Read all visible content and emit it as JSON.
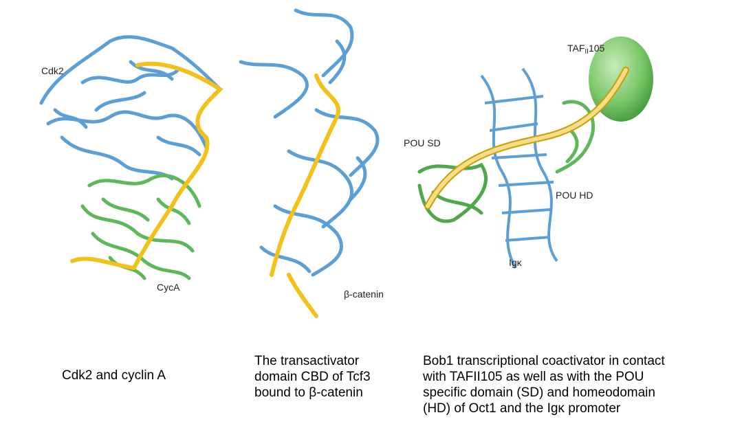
{
  "panels": [
    {
      "labels": {
        "top": "Cdk2",
        "bottom": "CycA"
      },
      "caption": [
        "Cdk2 and cyclin A"
      ]
    },
    {
      "labels": {
        "bottom": "β-catenin"
      },
      "caption": [
        "The transactivator",
        "domain CBD of Tcf3",
        "bound to β-catenin"
      ]
    },
    {
      "labels": {
        "taf_main": "TAF",
        "taf_sub": "II",
        "taf_num": "105",
        "pou_sd": "POU SD",
        "pou_hd": "POU HD",
        "igk": "Igκ"
      },
      "caption": [
        "Bob1 transcriptional coactivator in contact",
        "with TAFII105 as well as with the POU",
        "specific domain (SD) and homeodomain",
        "(HD) of Oct1 and the Igκ promoter"
      ]
    }
  ],
  "colors": {
    "protein_blue": "#5b9fd6",
    "protein_green": "#5cb85a",
    "peptide_yellow": "#f2c21b",
    "taf_green": "#7cc86a",
    "bob1_strand": "#f6dd8c"
  }
}
